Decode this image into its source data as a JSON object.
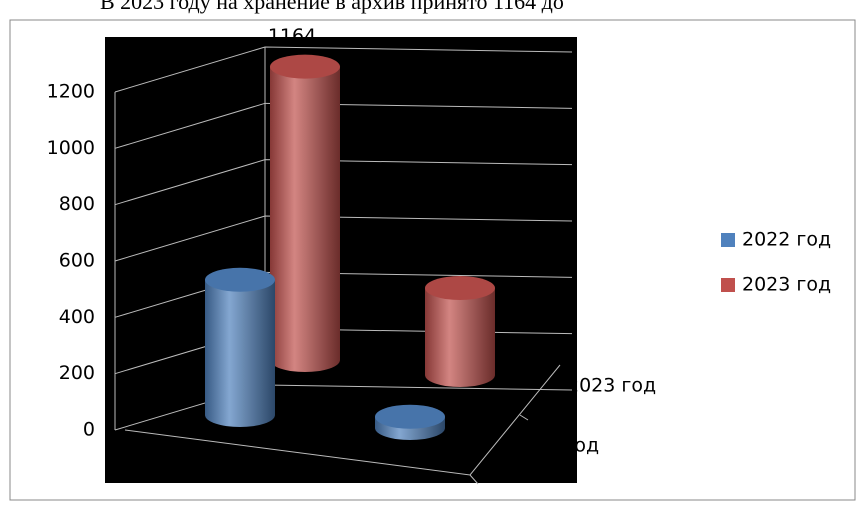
{
  "header_text": "В 2023 году на хранение в архив принято 1164 до",
  "chart_data": {
    "type": "bar",
    "categories": [
      null,
      null
    ],
    "series": [
      {
        "name": "2022 год",
        "color": "#4f81bd",
        "values": [
          480,
          40
        ]
      },
      {
        "name": "2023 год",
        "color": "#c0504d",
        "values": [
          1164,
          345
        ]
      }
    ],
    "ylim": [
      0,
      1200
    ],
    "yticks": [
      0,
      200,
      400,
      600,
      800,
      1000,
      1200
    ],
    "grid": true,
    "legend": "right"
  }
}
